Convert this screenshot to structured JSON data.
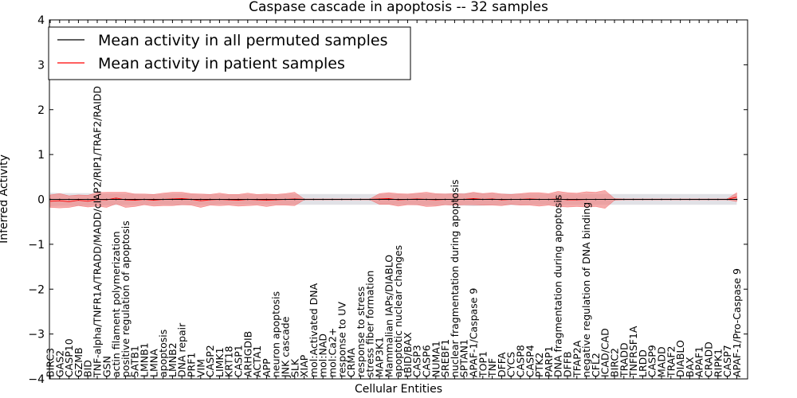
{
  "chart_data": {
    "type": "line",
    "title": "Caspase cascade in apoptosis -- 32 samples",
    "xlabel": "Cellular Entities",
    "ylabel": "Inferred Activity",
    "ylim": [
      -4,
      4
    ],
    "yticks": [
      "−4",
      "−3",
      "−2",
      "−1",
      "0",
      "1",
      "2",
      "3",
      "4"
    ],
    "legend_position": "top-left",
    "categories": [
      "BIRC3",
      "GAS2",
      "CASP10",
      "GZMB",
      "BID",
      "TNF-alpha/TNFR1A/TRADD/MADD/cIAP2/RIP1/TRAF2/RAIDD",
      "GSN",
      "actin filament polymerization",
      "positive regulation of apoptosis",
      "SATB1",
      "LMNB1",
      "LMNA",
      "apoptosis",
      "LMNB2",
      "DNA repair",
      "PRF1",
      "VIM",
      "CASP2",
      "LIMK1",
      "KRT18",
      "CASP1",
      "ARHGDIB",
      "ACTA1",
      "APP",
      "neuron apoptosis",
      "JNK cascade",
      "SLK",
      "XIAP",
      "mol:Activated DNA",
      "mol:NAD",
      "mol:Ca2+",
      "response to UV",
      "CRMA",
      "response to stress",
      "stress fiber formation",
      "MAP3K1",
      "Mammalian IAPs/DIABLO",
      "apoptotic nuclear changes",
      "tBID/BAX",
      "CASP3",
      "CASP6",
      "NUMA1",
      "SREBF1",
      "nuclear fragmentation during apoptosis",
      "SPTAN1",
      "APAF-1/Caspase 9",
      "TOP1",
      "TNF",
      "DFFA",
      "CYCS",
      "CASP8",
      "CASP4",
      "PTK2",
      "PARP1",
      "DNA fragmentation during apoptosis",
      "DFFB",
      "TFAP2A",
      "negative regulation of DNA binding",
      "CFL2",
      "ICAD/CAD",
      "BIRC2",
      "TRADD",
      "TNFRSF1A",
      "LRDD",
      "CASP9",
      "MADD",
      "TRAF2",
      "DIABLO",
      "BAX",
      "APAF1",
      "CRADD",
      "RIPK1",
      "CASP7",
      "APAF-1/Pro-Caspase 9"
    ],
    "series": [
      {
        "name": "Mean activity in all permuted samples",
        "color": "#000000",
        "band_color": "#c8c8d2",
        "values": [
          0.0,
          0.0,
          0.0,
          0.0,
          0.0,
          0.0,
          0.0,
          0.0,
          0.0,
          0.0,
          0.0,
          0.0,
          0.0,
          0.0,
          0.0,
          0.0,
          0.0,
          0.0,
          0.0,
          0.0,
          0.0,
          0.0,
          0.0,
          0.0,
          0.0,
          0.0,
          0.0,
          0.0,
          0.0,
          0.0,
          0.0,
          0.0,
          0.0,
          0.0,
          0.0,
          0.0,
          0.0,
          0.0,
          0.0,
          0.0,
          0.0,
          0.0,
          0.0,
          0.0,
          0.0,
          0.0,
          0.0,
          0.0,
          0.0,
          0.0,
          0.0,
          0.0,
          0.0,
          0.0,
          0.0,
          0.0,
          0.0,
          0.0,
          0.0,
          0.0,
          0.0,
          0.0,
          0.0,
          0.0,
          0.0,
          0.0,
          0.0,
          0.0,
          0.0,
          0.0,
          0.0,
          0.0,
          0.0,
          0.0
        ],
        "band": [
          0.15,
          0.14,
          0.14,
          0.14,
          0.14,
          0.13,
          0.13,
          0.13,
          0.12,
          0.13,
          0.12,
          0.12,
          0.12,
          0.13,
          0.13,
          0.12,
          0.12,
          0.12,
          0.11,
          0.11,
          0.11,
          0.11,
          0.11,
          0.11,
          0.11,
          0.12,
          0.12,
          0.12,
          0.12,
          0.12,
          0.12,
          0.12,
          0.12,
          0.12,
          0.12,
          0.12,
          0.12,
          0.12,
          0.12,
          0.13,
          0.13,
          0.13,
          0.13,
          0.14,
          0.14,
          0.15,
          0.14,
          0.13,
          0.13,
          0.13,
          0.13,
          0.12,
          0.12,
          0.12,
          0.12,
          0.12,
          0.12,
          0.12,
          0.12,
          0.12,
          0.12,
          0.12,
          0.12,
          0.12,
          0.12,
          0.12,
          0.12,
          0.12,
          0.12,
          0.12,
          0.12,
          0.12,
          0.12,
          0.12
        ]
      },
      {
        "name": "Mean activity in patient samples",
        "color": "#ff0000",
        "band_color": "#f08080",
        "values": [
          -0.04,
          -0.03,
          -0.05,
          -0.02,
          -0.04,
          0.0,
          -0.01,
          0.03,
          -0.01,
          -0.02,
          0.0,
          -0.02,
          0.0,
          0.01,
          0.02,
          0.0,
          -0.03,
          -0.01,
          0.0,
          -0.01,
          -0.02,
          0.0,
          -0.01,
          -0.02,
          -0.01,
          0.0,
          0.01,
          0.0,
          0.0,
          0.0,
          0.0,
          0.0,
          0.0,
          0.0,
          0.0,
          0.01,
          0.02,
          -0.01,
          0.0,
          0.01,
          0.0,
          -0.01,
          0.0,
          0.0,
          0.0,
          0.02,
          0.0,
          0.01,
          -0.01,
          0.0,
          0.0,
          0.01,
          0.0,
          0.0,
          0.01,
          -0.01,
          -0.01,
          0.0,
          0.0,
          0.0,
          0.0,
          0.0,
          0.0,
          0.0,
          0.0,
          0.0,
          0.0,
          0.0,
          0.0,
          0.0,
          0.0,
          0.0,
          0.0,
          0.05
        ],
        "band": [
          0.14,
          0.16,
          0.13,
          0.12,
          0.13,
          0.15,
          0.17,
          0.13,
          0.17,
          0.14,
          0.12,
          0.13,
          0.14,
          0.15,
          0.14,
          0.13,
          0.15,
          0.12,
          0.14,
          0.12,
          0.13,
          0.14,
          0.12,
          0.14,
          0.12,
          0.13,
          0.15,
          0.01,
          0.01,
          0.01,
          0.01,
          0.01,
          0.01,
          0.01,
          0.01,
          0.12,
          0.13,
          0.14,
          0.12,
          0.13,
          0.16,
          0.14,
          0.12,
          0.13,
          0.12,
          0.14,
          0.13,
          0.14,
          0.13,
          0.11,
          0.13,
          0.14,
          0.15,
          0.13,
          0.17,
          0.16,
          0.15,
          0.17,
          0.16,
          0.2,
          0.02,
          0.01,
          0.01,
          0.01,
          0.01,
          0.01,
          0.01,
          0.01,
          0.01,
          0.01,
          0.01,
          0.01,
          0.01,
          0.1
        ]
      }
    ]
  }
}
